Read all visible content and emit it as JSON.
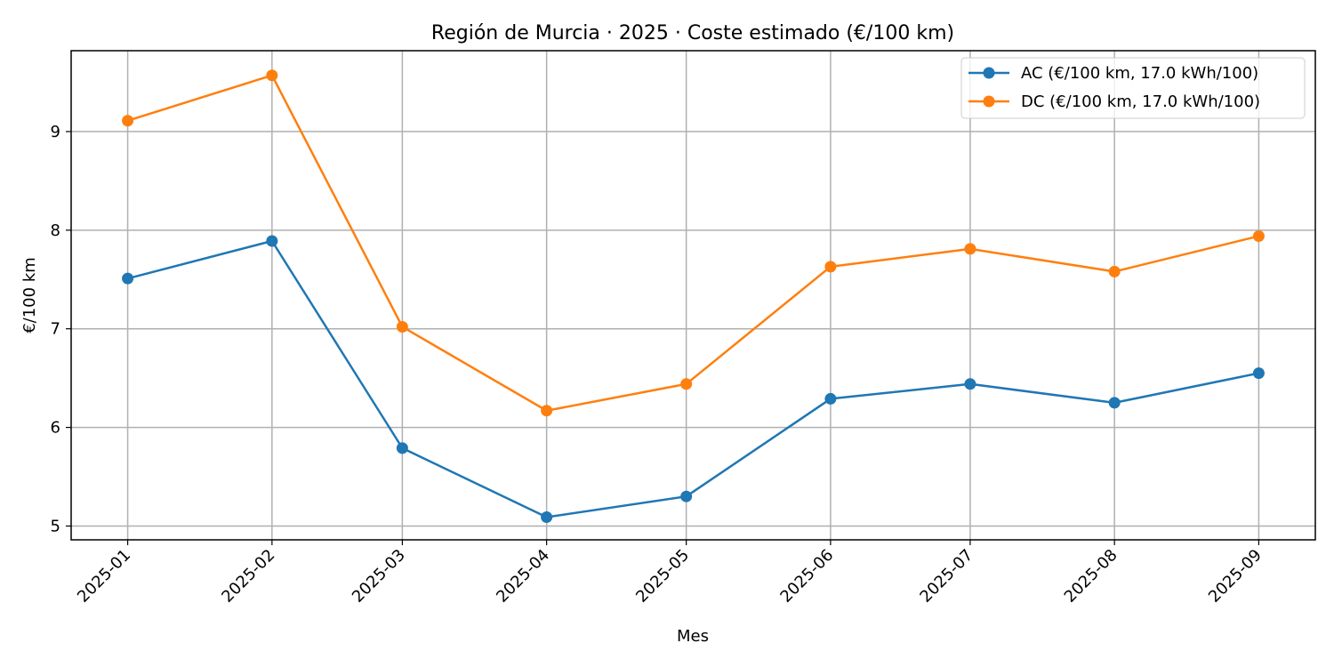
{
  "chart_data": {
    "type": "line",
    "title": "Región de Murcia · 2025 · Coste estimado (€/100 km)",
    "xlabel": "Mes",
    "ylabel": "€/100 km",
    "categories": [
      "2025-01",
      "2025-02",
      "2025-03",
      "2025-04",
      "2025-05",
      "2025-06",
      "2025-07",
      "2025-08",
      "2025-09"
    ],
    "x_dates": [
      "2025-01-01",
      "2025-02-01",
      "2025-03-01",
      "2025-04-01",
      "2025-05-01",
      "2025-06-01",
      "2025-07-01",
      "2025-08-01",
      "2025-09-01"
    ],
    "yticks": [
      5,
      6,
      7,
      8,
      9
    ],
    "ylim": [
      4.86,
      9.82
    ],
    "grid": true,
    "legend_position": "top-right",
    "series": [
      {
        "name": "AC (€/100 km, 17.0 kWh/100)",
        "color": "#1f77b4",
        "values": [
          7.51,
          7.89,
          5.79,
          5.09,
          5.3,
          6.29,
          6.44,
          6.25,
          6.55
        ]
      },
      {
        "name": "DC (€/100 km, 17.0 kWh/100)",
        "color": "#ff7f0e",
        "values": [
          9.11,
          9.57,
          7.02,
          6.17,
          6.44,
          7.63,
          7.81,
          7.58,
          7.94
        ]
      }
    ]
  }
}
